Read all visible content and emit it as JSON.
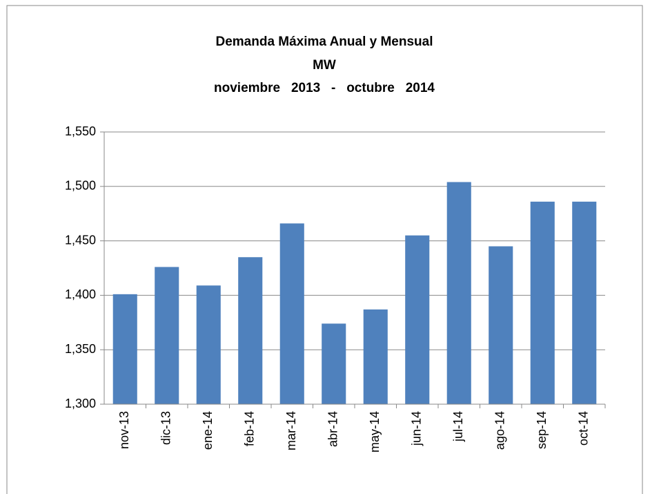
{
  "chart_data": {
    "type": "bar",
    "title": "Demanda Máxima Anual y Mensual",
    "subtitle": [
      "MW",
      "noviembre   2013   -   octubre   2014"
    ],
    "categories": [
      "nov-13",
      "dic-13",
      "ene-14",
      "feb-14",
      "mar-14",
      "abr-14",
      "may-14",
      "jun-14",
      "jul-14",
      "ago-14",
      "sep-14",
      "oct-14"
    ],
    "values": [
      1401,
      1426,
      1409,
      1435,
      1466,
      1374,
      1387,
      1455,
      1504,
      1445,
      1486,
      1486
    ],
    "color": "#4f81bd",
    "ylim": [
      1300,
      1550
    ],
    "yticks": [
      {
        "value": 1300,
        "label": "1,300"
      },
      {
        "value": 1350,
        "label": "1,350"
      },
      {
        "value": 1400,
        "label": "1,400"
      },
      {
        "value": 1450,
        "label": "1,450"
      },
      {
        "value": 1500,
        "label": "1,500"
      },
      {
        "value": 1550,
        "label": "1,550"
      }
    ],
    "grid": true
  }
}
